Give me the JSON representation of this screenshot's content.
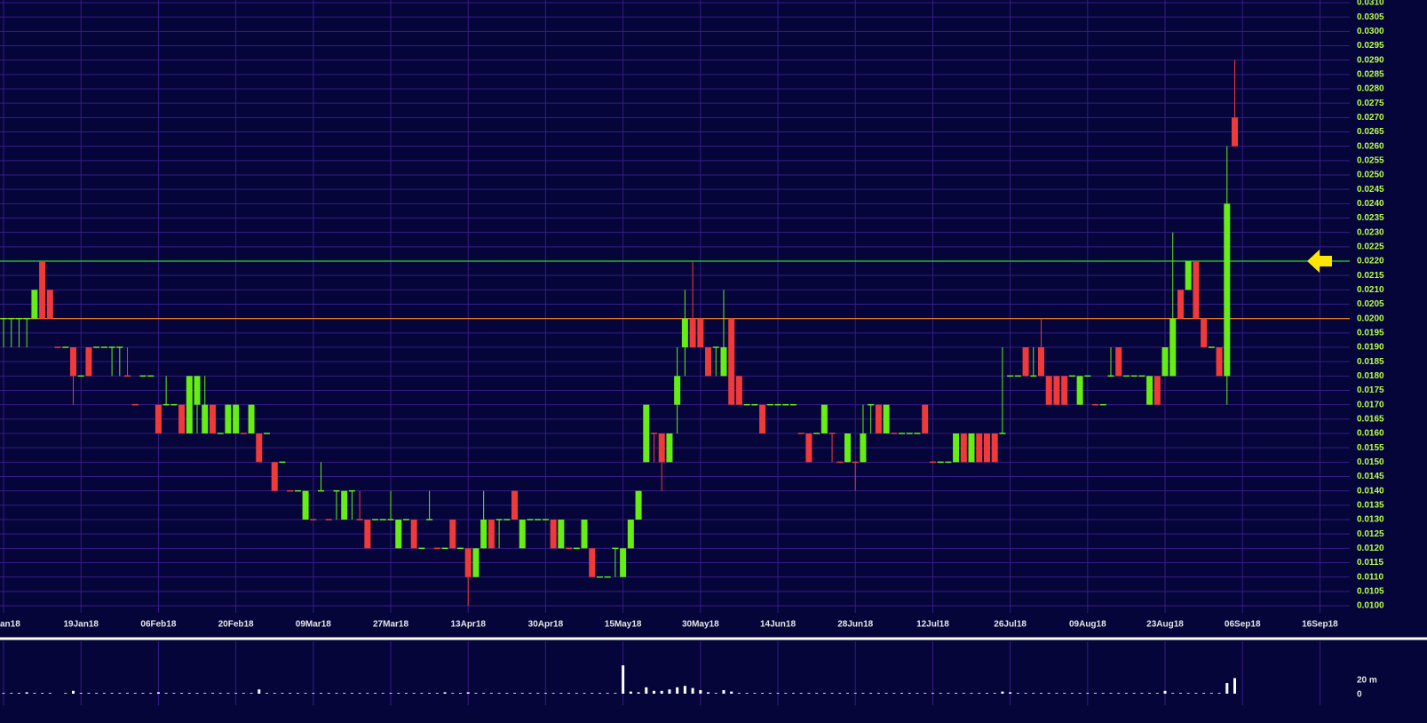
{
  "chart_data": {
    "type": "candlestick",
    "background": "#05053a",
    "grid": true,
    "grid_color": "#361c86",
    "up_color": "#66ee14",
    "down_color": "#f03a3a",
    "volume_color": "#ffffff",
    "xlim": [
      -0.46,
      173.85
    ],
    "xticks": [
      {
        "value": 0,
        "label": "an18"
      },
      {
        "value": 10,
        "label": "19Jan18"
      },
      {
        "value": 20,
        "label": "06Feb18"
      },
      {
        "value": 30,
        "label": "20Feb18"
      },
      {
        "value": 40,
        "label": "09Mar18"
      },
      {
        "value": 50,
        "label": "27Mar18"
      },
      {
        "value": 60,
        "label": "13Apr18"
      },
      {
        "value": 70,
        "label": "30Apr18"
      },
      {
        "value": 80,
        "label": "15May18"
      },
      {
        "value": 90,
        "label": "30May18"
      },
      {
        "value": 100,
        "label": "14Jun18"
      },
      {
        "value": 110,
        "label": "28Jun18"
      },
      {
        "value": 120,
        "label": "12Jul18"
      },
      {
        "value": 130,
        "label": "26Jul18"
      },
      {
        "value": 140,
        "label": "09Aug18"
      },
      {
        "value": 150,
        "label": "23Aug18"
      },
      {
        "value": 160,
        "label": "06Sep18"
      },
      {
        "value": 170,
        "label": "16Sep18"
      }
    ],
    "ylim": [
      0.01,
      0.031
    ],
    "yticks": [
      {
        "value": 0.01,
        "label": "0.0100"
      },
      {
        "value": 0.0105,
        "label": "0.0105"
      },
      {
        "value": 0.011,
        "label": "0.0110"
      },
      {
        "value": 0.0115,
        "label": "0.0115"
      },
      {
        "value": 0.012,
        "label": "0.0120"
      },
      {
        "value": 0.0125,
        "label": "0.0125"
      },
      {
        "value": 0.013,
        "label": "0.0130"
      },
      {
        "value": 0.0135,
        "label": "0.0135"
      },
      {
        "value": 0.014,
        "label": "0.0140"
      },
      {
        "value": 0.0145,
        "label": "0.0145"
      },
      {
        "value": 0.015,
        "label": "0.0150"
      },
      {
        "value": 0.0155,
        "label": "0.0155"
      },
      {
        "value": 0.016,
        "label": "0.0160"
      },
      {
        "value": 0.0165,
        "label": "0.0165"
      },
      {
        "value": 0.017,
        "label": "0.0170"
      },
      {
        "value": 0.0175,
        "label": "0.0175"
      },
      {
        "value": 0.018,
        "label": "0.0180"
      },
      {
        "value": 0.0185,
        "label": "0.0185"
      },
      {
        "value": 0.019,
        "label": "0.0190"
      },
      {
        "value": 0.0195,
        "label": "0.0195"
      },
      {
        "value": 0.02,
        "label": "0.0200"
      },
      {
        "value": 0.0205,
        "label": "0.0205"
      },
      {
        "value": 0.021,
        "label": "0.0210"
      },
      {
        "value": 0.0215,
        "label": "0.0215"
      },
      {
        "value": 0.022,
        "label": "0.0220"
      },
      {
        "value": 0.0225,
        "label": "0.0225"
      },
      {
        "value": 0.023,
        "label": "0.0230"
      },
      {
        "value": 0.0235,
        "label": "0.0235"
      },
      {
        "value": 0.024,
        "label": "0.0240"
      },
      {
        "value": 0.0245,
        "label": "0.0245"
      },
      {
        "value": 0.025,
        "label": "0.0250"
      },
      {
        "value": 0.0255,
        "label": "0.0255"
      },
      {
        "value": 0.026,
        "label": "0.0260"
      },
      {
        "value": 0.0265,
        "label": "0.0265"
      },
      {
        "value": 0.027,
        "label": "0.0270"
      },
      {
        "value": 0.0275,
        "label": "0.0275"
      },
      {
        "value": 0.028,
        "label": "0.0280"
      },
      {
        "value": 0.0285,
        "label": "0.0285"
      },
      {
        "value": 0.029,
        "label": "0.0290"
      },
      {
        "value": 0.0295,
        "label": "0.0295"
      },
      {
        "value": 0.03,
        "label": "0.0300"
      },
      {
        "value": 0.0305,
        "label": "0.0305"
      },
      {
        "value": 0.031,
        "label": "0.0310"
      }
    ],
    "lines": [
      {
        "value": 0.022,
        "color": "#22dd22"
      },
      {
        "value": 0.02,
        "color": "#ff8a1e"
      }
    ],
    "arrow": {
      "value": 0.022,
      "color": "#ffe600"
    },
    "open": [
      0.02,
      0.02,
      0.02,
      0.02,
      0.02,
      0.022,
      0.021,
      0.019,
      0.019,
      0.019,
      0.018,
      0.019,
      0.019,
      0.019,
      0.019,
      0.019,
      0.018,
      0.017,
      0.018,
      0.018,
      0.017,
      0.017,
      0.017,
      0.017,
      0.016,
      0.017,
      0.016,
      0.017,
      0.016,
      0.016,
      0.016,
      0.016,
      0.016,
      0.016,
      0.016,
      0.015,
      0.015,
      0.014,
      0.014,
      0.013,
      0.013,
      0.014,
      0.013,
      0.014,
      0.013,
      0.014,
      0.013,
      0.013,
      0.013,
      0.013,
      0.013,
      0.012,
      0.013,
      0.013,
      0.012,
      0.013,
      0.012,
      0.012,
      0.013,
      0.012,
      0.012,
      0.011,
      0.012,
      0.013,
      0.013,
      0.013,
      0.014,
      0.012,
      0.013,
      0.013,
      0.013,
      0.013,
      0.012,
      0.012,
      0.012,
      0.012,
      0.012,
      0.011,
      0.011,
      0.012,
      0.011,
      0.012,
      0.013,
      0.015,
      0.016,
      0.016,
      0.015,
      0.017,
      0.019,
      0.02,
      0.02,
      0.019,
      0.019,
      0.018,
      0.02,
      0.018,
      0.017,
      0.017,
      0.017,
      0.017,
      0.017,
      0.017,
      0.017,
      0.016,
      0.016,
      0.016,
      0.016,
      0.016,
      0.015,
      0.015,
      0.015,
      0.015,
      0.017,
      0.017,
      0.016,
      0.016,
      0.016,
      0.016,
      0.016,
      0.017,
      0.015,
      0.015,
      0.015,
      0.015,
      0.016,
      0.015,
      0.016,
      0.016,
      0.016,
      0.016,
      0.018,
      0.018,
      0.019,
      0.018,
      0.019,
      0.018,
      0.018,
      0.018,
      0.018,
      0.017,
      0.018,
      0.017,
      0.017,
      0.018,
      0.019,
      0.018,
      0.018,
      0.018,
      0.017,
      0.018,
      0.018,
      0.018,
      0.021,
      0.021,
      0.022,
      0.02,
      0.019,
      0.019,
      0.018,
      0.027
    ],
    "high": [
      0.02,
      0.02,
      0.02,
      0.02,
      0.021,
      0.022,
      0.021,
      0.019,
      0.019,
      0.019,
      0.018,
      0.019,
      0.019,
      0.019,
      0.019,
      0.019,
      0.019,
      0.017,
      0.018,
      0.018,
      0.017,
      0.018,
      0.017,
      0.017,
      0.018,
      0.018,
      0.018,
      0.017,
      0.016,
      0.017,
      0.017,
      0.016,
      0.017,
      0.016,
      0.016,
      0.015,
      0.015,
      0.014,
      0.014,
      0.014,
      0.013,
      0.015,
      0.013,
      0.014,
      0.014,
      0.014,
      0.014,
      0.013,
      0.013,
      0.013,
      0.014,
      0.013,
      0.013,
      0.013,
      0.012,
      0.014,
      0.012,
      0.012,
      0.013,
      0.012,
      0.012,
      0.012,
      0.014,
      0.013,
      0.013,
      0.013,
      0.014,
      0.013,
      0.013,
      0.013,
      0.013,
      0.013,
      0.013,
      0.012,
      0.012,
      0.013,
      0.012,
      0.011,
      0.011,
      0.012,
      0.012,
      0.013,
      0.014,
      0.017,
      0.016,
      0.016,
      0.016,
      0.019,
      0.021,
      0.022,
      0.02,
      0.019,
      0.019,
      0.021,
      0.02,
      0.018,
      0.017,
      0.017,
      0.017,
      0.017,
      0.017,
      0.017,
      0.017,
      0.016,
      0.016,
      0.016,
      0.017,
      0.016,
      0.015,
      0.016,
      0.015,
      0.017,
      0.017,
      0.017,
      0.017,
      0.016,
      0.016,
      0.016,
      0.016,
      0.017,
      0.015,
      0.015,
      0.015,
      0.016,
      0.016,
      0.016,
      0.016,
      0.016,
      0.016,
      0.019,
      0.018,
      0.018,
      0.019,
      0.019,
      0.02,
      0.018,
      0.018,
      0.018,
      0.018,
      0.018,
      0.018,
      0.017,
      0.017,
      0.019,
      0.019,
      0.018,
      0.018,
      0.018,
      0.018,
      0.018,
      0.019,
      0.023,
      0.021,
      0.022,
      0.022,
      0.02,
      0.019,
      0.019,
      0.026,
      0.029
    ],
    "low": [
      0.019,
      0.019,
      0.019,
      0.019,
      0.02,
      0.02,
      0.02,
      0.019,
      0.019,
      0.017,
      0.018,
      0.018,
      0.019,
      0.019,
      0.018,
      0.018,
      0.018,
      0.017,
      0.018,
      0.018,
      0.016,
      0.017,
      0.017,
      0.016,
      0.016,
      0.016,
      0.016,
      0.016,
      0.016,
      0.016,
      0.016,
      0.016,
      0.016,
      0.015,
      0.016,
      0.014,
      0.015,
      0.014,
      0.014,
      0.013,
      0.013,
      0.014,
      0.013,
      0.013,
      0.013,
      0.013,
      0.013,
      0.012,
      0.013,
      0.013,
      0.013,
      0.012,
      0.013,
      0.012,
      0.012,
      0.013,
      0.012,
      0.012,
      0.012,
      0.012,
      0.01,
      0.011,
      0.012,
      0.012,
      0.012,
      0.013,
      0.013,
      0.012,
      0.013,
      0.013,
      0.013,
      0.012,
      0.012,
      0.012,
      0.012,
      0.012,
      0.011,
      0.011,
      0.011,
      0.011,
      0.011,
      0.012,
      0.013,
      0.015,
      0.015,
      0.014,
      0.015,
      0.016,
      0.018,
      0.019,
      0.019,
      0.018,
      0.018,
      0.018,
      0.017,
      0.017,
      0.017,
      0.017,
      0.016,
      0.017,
      0.017,
      0.017,
      0.017,
      0.016,
      0.015,
      0.016,
      0.016,
      0.015,
      0.015,
      0.015,
      0.014,
      0.015,
      0.016,
      0.016,
      0.016,
      0.016,
      0.016,
      0.016,
      0.016,
      0.016,
      0.015,
      0.015,
      0.015,
      0.015,
      0.015,
      0.015,
      0.015,
      0.015,
      0.015,
      0.016,
      0.018,
      0.018,
      0.018,
      0.018,
      0.018,
      0.017,
      0.017,
      0.017,
      0.018,
      0.017,
      0.018,
      0.017,
      0.017,
      0.018,
      0.018,
      0.018,
      0.018,
      0.018,
      0.017,
      0.017,
      0.018,
      0.018,
      0.02,
      0.021,
      0.02,
      0.019,
      0.019,
      0.018,
      0.017,
      0.026
    ],
    "close": [
      0.02,
      0.02,
      0.02,
      0.02,
      0.021,
      0.02,
      0.02,
      0.019,
      0.019,
      0.018,
      0.018,
      0.018,
      0.019,
      0.019,
      0.019,
      0.019,
      0.018,
      0.017,
      0.018,
      0.018,
      0.016,
      0.017,
      0.017,
      0.016,
      0.018,
      0.018,
      0.017,
      0.016,
      0.016,
      0.017,
      0.017,
      0.016,
      0.017,
      0.015,
      0.016,
      0.014,
      0.015,
      0.014,
      0.014,
      0.014,
      0.013,
      0.014,
      0.013,
      0.014,
      0.014,
      0.014,
      0.013,
      0.012,
      0.013,
      0.013,
      0.013,
      0.013,
      0.013,
      0.012,
      0.012,
      0.013,
      0.012,
      0.012,
      0.012,
      0.012,
      0.011,
      0.012,
      0.013,
      0.012,
      0.013,
      0.013,
      0.013,
      0.013,
      0.013,
      0.013,
      0.013,
      0.012,
      0.013,
      0.012,
      0.012,
      0.013,
      0.011,
      0.011,
      0.011,
      0.012,
      0.012,
      0.013,
      0.014,
      0.017,
      0.016,
      0.015,
      0.016,
      0.018,
      0.02,
      0.019,
      0.019,
      0.018,
      0.019,
      0.019,
      0.017,
      0.017,
      0.017,
      0.017,
      0.016,
      0.017,
      0.017,
      0.017,
      0.017,
      0.016,
      0.015,
      0.016,
      0.017,
      0.016,
      0.015,
      0.016,
      0.015,
      0.016,
      0.017,
      0.016,
      0.017,
      0.016,
      0.016,
      0.016,
      0.016,
      0.016,
      0.015,
      0.015,
      0.015,
      0.016,
      0.015,
      0.016,
      0.015,
      0.015,
      0.015,
      0.016,
      0.018,
      0.018,
      0.018,
      0.018,
      0.018,
      0.017,
      0.017,
      0.017,
      0.018,
      0.018,
      0.018,
      0.017,
      0.017,
      0.018,
      0.018,
      0.018,
      0.018,
      0.018,
      0.018,
      0.017,
      0.019,
      0.02,
      0.02,
      0.022,
      0.02,
      0.019,
      0.019,
      0.018,
      0.024,
      0.026
    ],
    "volume": [
      1,
      1,
      1,
      2,
      1,
      1,
      1,
      0,
      1,
      4,
      1,
      1,
      1,
      1,
      1,
      1,
      1,
      1,
      1,
      1,
      2,
      1,
      1,
      1,
      1,
      1,
      1,
      1,
      1,
      1,
      1,
      1,
      1,
      6,
      1,
      1,
      1,
      1,
      1,
      1,
      1,
      1,
      1,
      1,
      1,
      1,
      1,
      1,
      1,
      1,
      1,
      1,
      1,
      1,
      1,
      1,
      1,
      2,
      1,
      1,
      2,
      1,
      1,
      1,
      1,
      1,
      1,
      1,
      1,
      1,
      1,
      1,
      1,
      1,
      1,
      1,
      1,
      1,
      1,
      1,
      40,
      3,
      2,
      9,
      4,
      4,
      6,
      9,
      11,
      8,
      5,
      2,
      1,
      5,
      3,
      1,
      1,
      1,
      1,
      1,
      1,
      1,
      1,
      1,
      1,
      1,
      1,
      1,
      1,
      1,
      1,
      1,
      1,
      1,
      1,
      1,
      1,
      1,
      1,
      1,
      1,
      1,
      1,
      1,
      1,
      1,
      1,
      1,
      1,
      3,
      2,
      1,
      1,
      1,
      1,
      1,
      1,
      1,
      1,
      1,
      1,
      1,
      1,
      1,
      1,
      1,
      1,
      1,
      1,
      1,
      4,
      1,
      1,
      1,
      1,
      1,
      1,
      1,
      15,
      22
    ],
    "volume_lim": [
      0,
      74
    ],
    "volume_ticks": [
      0,
      {
        "value": 20,
        "label": "20 m"
      }
    ]
  }
}
